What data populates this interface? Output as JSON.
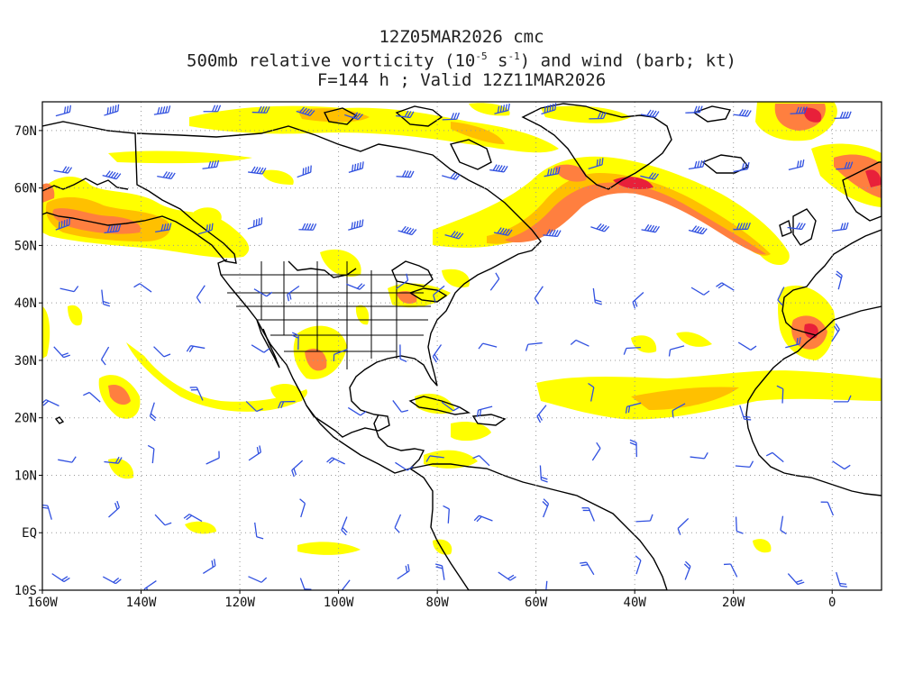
{
  "header": {
    "line1": "12Z05MAR2026 cmc",
    "line2_pre": "500mb relative vorticity (10",
    "line2_exp1": "-5",
    "line2_mid": " s",
    "line2_exp2": "-1",
    "line2_post": ") and wind (barb; kt)",
    "line3": "F=144 h ; Valid 12Z11MAR2026"
  },
  "map": {
    "lat_labels": [
      "70N",
      "60N",
      "50N",
      "40N",
      "30N",
      "20N",
      "10N",
      "EQ",
      "10S"
    ],
    "lon_labels": [
      "160W",
      "140W",
      "120W",
      "100W",
      "80W",
      "60W",
      "40W",
      "20W",
      "0"
    ],
    "lat_range": [
      -10,
      75
    ],
    "lon_range": [
      -160,
      10
    ],
    "grid": "dotted",
    "colors": {
      "vorticity_low": "#ffff00",
      "vorticity_mid": "#ffc000",
      "vorticity_high": "#ff7f3f",
      "vorticity_peak": "#e8203a",
      "wind_barbs": "#3050e0",
      "coastlines": "#000000"
    }
  }
}
